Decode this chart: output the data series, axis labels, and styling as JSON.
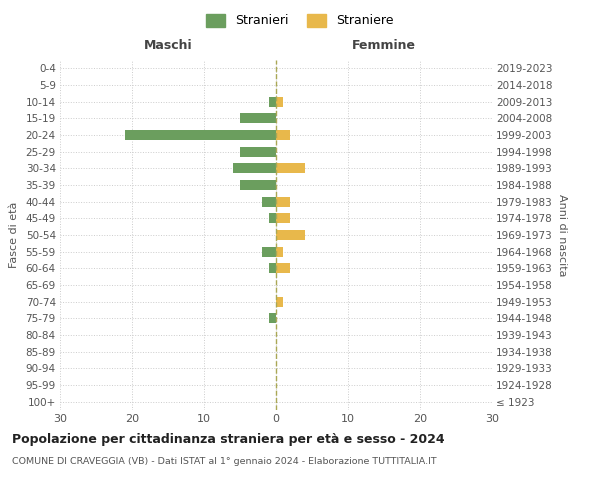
{
  "age_groups": [
    "100+",
    "95-99",
    "90-94",
    "85-89",
    "80-84",
    "75-79",
    "70-74",
    "65-69",
    "60-64",
    "55-59",
    "50-54",
    "45-49",
    "40-44",
    "35-39",
    "30-34",
    "25-29",
    "20-24",
    "15-19",
    "10-14",
    "5-9",
    "0-4"
  ],
  "birth_years": [
    "≤ 1923",
    "1924-1928",
    "1929-1933",
    "1934-1938",
    "1939-1943",
    "1944-1948",
    "1949-1953",
    "1954-1958",
    "1959-1963",
    "1964-1968",
    "1969-1973",
    "1974-1978",
    "1979-1983",
    "1984-1988",
    "1989-1993",
    "1994-1998",
    "1999-2003",
    "2004-2008",
    "2009-2013",
    "2014-2018",
    "2019-2023"
  ],
  "maschi": [
    0,
    0,
    0,
    0,
    0,
    1,
    0,
    0,
    1,
    2,
    0,
    1,
    2,
    5,
    6,
    5,
    21,
    5,
    1,
    0,
    0
  ],
  "femmine": [
    0,
    0,
    0,
    0,
    0,
    0,
    1,
    0,
    2,
    1,
    4,
    2,
    2,
    0,
    4,
    0,
    2,
    0,
    1,
    0,
    0
  ],
  "color_maschi": "#6b9e5e",
  "color_femmine": "#e8b84b",
  "title": "Popolazione per cittadinanza straniera per età e sesso - 2024",
  "subtitle": "COMUNE DI CRAVEGGIA (VB) - Dati ISTAT al 1° gennaio 2024 - Elaborazione TUTTITALIA.IT",
  "xlabel_left": "Maschi",
  "xlabel_right": "Femmine",
  "ylabel_left": "Fasce di età",
  "ylabel_right": "Anni di nascita",
  "legend_maschi": "Stranieri",
  "legend_femmine": "Straniere",
  "xlim": 30,
  "background_color": "#ffffff",
  "grid_color": "#cccccc"
}
